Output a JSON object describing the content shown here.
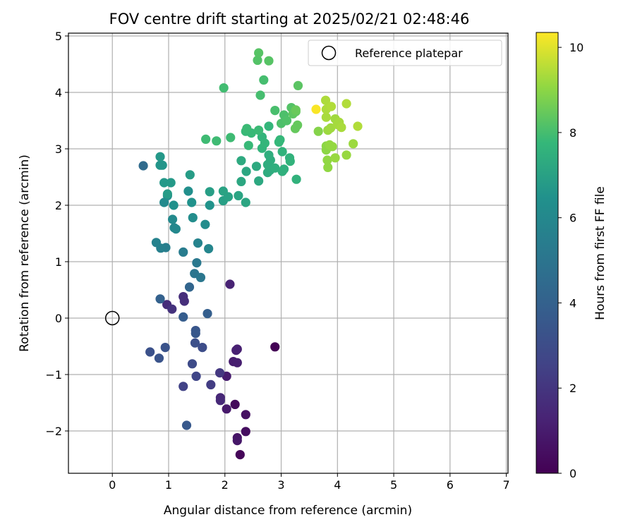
{
  "chart_data": {
    "type": "scatter",
    "title": "FOV centre drift starting at 2025/02/21 02:48:46",
    "xlabel": "Angular distance from reference (arcmin)",
    "ylabel": "Rotation from reference (arcmin)",
    "xlim": [
      -0.78,
      7.03
    ],
    "ylim": [
      -2.75,
      5.05
    ],
    "xticks": [
      0,
      1,
      2,
      3,
      4,
      5,
      6,
      7
    ],
    "yticks": [
      -2,
      -1,
      0,
      1,
      2,
      3,
      4,
      5
    ],
    "grid": true,
    "legend": {
      "placement": "top-right",
      "entries": [
        "Reference platepar"
      ]
    },
    "reference_point": {
      "x": 0,
      "y": 0
    },
    "colorbar": {
      "label": "Hours from first FF file",
      "colormap": "viridis",
      "range": [
        0,
        10.35
      ],
      "ticks": [
        0,
        2,
        4,
        6,
        8,
        10
      ]
    },
    "points": [
      {
        "x": 2.89,
        "y": -0.51,
        "c": 0.05
      },
      {
        "x": 2.27,
        "y": -2.42,
        "c": 0.2
      },
      {
        "x": 2.18,
        "y": -1.53,
        "c": 0.3
      },
      {
        "x": 2.37,
        "y": -2.01,
        "c": 0.45
      },
      {
        "x": 2.37,
        "y": -1.71,
        "c": 0.55
      },
      {
        "x": 2.22,
        "y": -2.12,
        "c": 0.7
      },
      {
        "x": 2.22,
        "y": -2.17,
        "c": 0.8
      },
      {
        "x": 2.03,
        "y": -1.61,
        "c": 0.9
      },
      {
        "x": 2.03,
        "y": -1.03,
        "c": 1.0
      },
      {
        "x": 2.15,
        "y": -0.77,
        "c": 1.05
      },
      {
        "x": 2.22,
        "y": -0.79,
        "c": 1.1
      },
      {
        "x": 2.22,
        "y": -0.55,
        "c": 1.15
      },
      {
        "x": 2.2,
        "y": -0.57,
        "c": 1.2
      },
      {
        "x": 2.09,
        "y": 0.6,
        "c": 1.25
      },
      {
        "x": 1.92,
        "y": -1.41,
        "c": 1.4
      },
      {
        "x": 1.92,
        "y": -1.46,
        "c": 1.5
      },
      {
        "x": 0.97,
        "y": 0.24,
        "c": 1.6
      },
      {
        "x": 1.26,
        "y": 0.38,
        "c": 1.7
      },
      {
        "x": 1.28,
        "y": 0.3,
        "c": 1.75
      },
      {
        "x": 1.06,
        "y": 0.16,
        "c": 1.85
      },
      {
        "x": 1.91,
        "y": -0.97,
        "c": 2.1
      },
      {
        "x": 1.75,
        "y": -1.18,
        "c": 2.3
      },
      {
        "x": 1.26,
        "y": -1.21,
        "c": 2.5
      },
      {
        "x": 1.49,
        "y": -1.03,
        "c": 2.7
      },
      {
        "x": 1.42,
        "y": -0.81,
        "c": 2.9
      },
      {
        "x": 1.6,
        "y": -0.52,
        "c": 3.0
      },
      {
        "x": 1.47,
        "y": -0.44,
        "c": 3.15
      },
      {
        "x": 0.67,
        "y": -0.6,
        "c": 3.2
      },
      {
        "x": 0.94,
        "y": -0.52,
        "c": 3.3
      },
      {
        "x": 0.83,
        "y": -0.71,
        "c": 3.35
      },
      {
        "x": 1.48,
        "y": -0.22,
        "c": 3.45
      },
      {
        "x": 1.48,
        "y": -0.27,
        "c": 3.55
      },
      {
        "x": 1.32,
        "y": -1.9,
        "c": 3.6
      },
      {
        "x": 1.26,
        "y": 0.02,
        "c": 3.8
      },
      {
        "x": 1.69,
        "y": 0.08,
        "c": 3.9
      },
      {
        "x": 0.85,
        "y": 0.34,
        "c": 4.0
      },
      {
        "x": 1.37,
        "y": 0.55,
        "c": 4.2
      },
      {
        "x": 0.55,
        "y": 2.7,
        "c": 4.5
      },
      {
        "x": 1.46,
        "y": 0.79,
        "c": 5.0
      },
      {
        "x": 1.57,
        "y": 0.72,
        "c": 5.1
      },
      {
        "x": 1.5,
        "y": 0.98,
        "c": 5.2
      },
      {
        "x": 1.26,
        "y": 1.17,
        "c": 5.4
      },
      {
        "x": 0.95,
        "y": 1.25,
        "c": 5.5
      },
      {
        "x": 0.86,
        "y": 1.24,
        "c": 5.6
      },
      {
        "x": 0.78,
        "y": 1.34,
        "c": 5.7
      },
      {
        "x": 1.52,
        "y": 1.33,
        "c": 5.75
      },
      {
        "x": 1.71,
        "y": 1.23,
        "c": 5.9
      },
      {
        "x": 1.1,
        "y": 1.6,
        "c": 5.95
      },
      {
        "x": 1.13,
        "y": 1.58,
        "c": 6.0
      },
      {
        "x": 1.07,
        "y": 1.75,
        "c": 6.1
      },
      {
        "x": 0.92,
        "y": 2.05,
        "c": 6.1
      },
      {
        "x": 1.65,
        "y": 1.66,
        "c": 6.2
      },
      {
        "x": 1.43,
        "y": 1.78,
        "c": 6.25
      },
      {
        "x": 0.98,
        "y": 2.17,
        "c": 6.3
      },
      {
        "x": 1.35,
        "y": 2.25,
        "c": 6.35
      },
      {
        "x": 1.09,
        "y": 2.0,
        "c": 6.45
      },
      {
        "x": 1.41,
        "y": 2.05,
        "c": 6.5
      },
      {
        "x": 1.73,
        "y": 2.0,
        "c": 6.55
      },
      {
        "x": 0.85,
        "y": 2.71,
        "c": 6.6
      },
      {
        "x": 0.89,
        "y": 2.71,
        "c": 6.6
      },
      {
        "x": 0.85,
        "y": 2.86,
        "c": 6.7
      },
      {
        "x": 0.92,
        "y": 2.4,
        "c": 6.7
      },
      {
        "x": 1.04,
        "y": 2.4,
        "c": 6.75
      },
      {
        "x": 0.98,
        "y": 2.2,
        "c": 6.8
      },
      {
        "x": 1.38,
        "y": 2.54,
        "c": 6.85
      },
      {
        "x": 1.73,
        "y": 2.24,
        "c": 6.9
      },
      {
        "x": 1.97,
        "y": 2.08,
        "c": 6.95
      },
      {
        "x": 2.06,
        "y": 2.15,
        "c": 7.0
      },
      {
        "x": 1.97,
        "y": 2.25,
        "c": 7.05
      },
      {
        "x": 2.24,
        "y": 2.17,
        "c": 7.1
      },
      {
        "x": 2.37,
        "y": 2.05,
        "c": 7.15
      },
      {
        "x": 2.29,
        "y": 2.42,
        "c": 7.2
      },
      {
        "x": 2.38,
        "y": 2.6,
        "c": 7.2
      },
      {
        "x": 2.6,
        "y": 2.43,
        "c": 7.25
      },
      {
        "x": 2.29,
        "y": 2.79,
        "c": 7.3
      },
      {
        "x": 2.56,
        "y": 2.69,
        "c": 7.3
      },
      {
        "x": 2.76,
        "y": 2.58,
        "c": 7.35
      },
      {
        "x": 2.8,
        "y": 2.62,
        "c": 7.35
      },
      {
        "x": 2.76,
        "y": 2.72,
        "c": 7.4
      },
      {
        "x": 2.81,
        "y": 2.8,
        "c": 7.4
      },
      {
        "x": 2.78,
        "y": 2.89,
        "c": 7.45
      },
      {
        "x": 2.89,
        "y": 2.66,
        "c": 7.45
      },
      {
        "x": 3.02,
        "y": 2.6,
        "c": 7.5
      },
      {
        "x": 3.05,
        "y": 2.64,
        "c": 7.5
      },
      {
        "x": 3.27,
        "y": 2.46,
        "c": 7.55
      },
      {
        "x": 3.15,
        "y": 2.84,
        "c": 7.55
      },
      {
        "x": 3.16,
        "y": 2.78,
        "c": 7.6
      },
      {
        "x": 3.02,
        "y": 2.95,
        "c": 7.6
      },
      {
        "x": 2.66,
        "y": 3.01,
        "c": 7.65
      },
      {
        "x": 2.66,
        "y": 3.21,
        "c": 7.65
      },
      {
        "x": 2.71,
        "y": 3.1,
        "c": 7.7
      },
      {
        "x": 2.78,
        "y": 3.4,
        "c": 7.7
      },
      {
        "x": 2.96,
        "y": 3.12,
        "c": 7.75
      },
      {
        "x": 2.98,
        "y": 3.16,
        "c": 7.75
      },
      {
        "x": 2.42,
        "y": 3.06,
        "c": 7.8
      },
      {
        "x": 2.47,
        "y": 3.28,
        "c": 7.8
      },
      {
        "x": 2.37,
        "y": 3.31,
        "c": 7.8
      },
      {
        "x": 2.39,
        "y": 3.36,
        "c": 7.85
      },
      {
        "x": 2.6,
        "y": 3.33,
        "c": 7.85
      },
      {
        "x": 2.1,
        "y": 3.2,
        "c": 7.9
      },
      {
        "x": 1.85,
        "y": 3.14,
        "c": 7.9
      },
      {
        "x": 1.66,
        "y": 3.17,
        "c": 7.9
      },
      {
        "x": 1.98,
        "y": 4.08,
        "c": 7.95
      },
      {
        "x": 2.63,
        "y": 3.95,
        "c": 8.0
      },
      {
        "x": 2.69,
        "y": 4.22,
        "c": 8.0
      },
      {
        "x": 2.89,
        "y": 3.68,
        "c": 8.05
      },
      {
        "x": 3.0,
        "y": 3.45,
        "c": 8.1
      },
      {
        "x": 3.05,
        "y": 3.6,
        "c": 8.1
      },
      {
        "x": 3.1,
        "y": 3.5,
        "c": 8.15
      },
      {
        "x": 3.18,
        "y": 3.73,
        "c": 8.2
      },
      {
        "x": 2.58,
        "y": 4.57,
        "c": 8.2
      },
      {
        "x": 2.6,
        "y": 4.7,
        "c": 8.25
      },
      {
        "x": 2.78,
        "y": 4.56,
        "c": 8.25
      },
      {
        "x": 3.3,
        "y": 4.12,
        "c": 8.3
      },
      {
        "x": 3.21,
        "y": 3.62,
        "c": 8.35
      },
      {
        "x": 3.26,
        "y": 3.66,
        "c": 8.4
      },
      {
        "x": 3.25,
        "y": 3.36,
        "c": 8.45
      },
      {
        "x": 3.29,
        "y": 3.42,
        "c": 8.45
      },
      {
        "x": 3.26,
        "y": 3.69,
        "c": 8.5
      },
      {
        "x": 3.66,
        "y": 3.31,
        "c": 8.9
      },
      {
        "x": 3.8,
        "y": 2.98,
        "c": 9.0
      },
      {
        "x": 3.8,
        "y": 3.05,
        "c": 9.0
      },
      {
        "x": 3.82,
        "y": 2.8,
        "c": 9.05
      },
      {
        "x": 3.83,
        "y": 2.67,
        "c": 9.05
      },
      {
        "x": 3.86,
        "y": 3.07,
        "c": 9.1
      },
      {
        "x": 3.91,
        "y": 3.04,
        "c": 9.1
      },
      {
        "x": 3.96,
        "y": 2.84,
        "c": 9.15
      },
      {
        "x": 4.16,
        "y": 2.89,
        "c": 9.15
      },
      {
        "x": 4.28,
        "y": 3.09,
        "c": 9.2
      },
      {
        "x": 3.83,
        "y": 3.33,
        "c": 9.2
      },
      {
        "x": 3.88,
        "y": 3.37,
        "c": 9.25
      },
      {
        "x": 3.96,
        "y": 3.53,
        "c": 9.25
      },
      {
        "x": 4.0,
        "y": 3.43,
        "c": 9.3
      },
      {
        "x": 4.03,
        "y": 3.47,
        "c": 9.3
      },
      {
        "x": 4.07,
        "y": 3.38,
        "c": 9.35
      },
      {
        "x": 3.8,
        "y": 3.56,
        "c": 9.35
      },
      {
        "x": 3.8,
        "y": 3.7,
        "c": 9.4
      },
      {
        "x": 3.79,
        "y": 3.86,
        "c": 9.4
      },
      {
        "x": 3.89,
        "y": 3.75,
        "c": 9.45
      },
      {
        "x": 4.16,
        "y": 3.8,
        "c": 9.45
      },
      {
        "x": 4.36,
        "y": 3.4,
        "c": 9.45
      },
      {
        "x": 3.62,
        "y": 3.7,
        "c": 10.3
      }
    ]
  }
}
